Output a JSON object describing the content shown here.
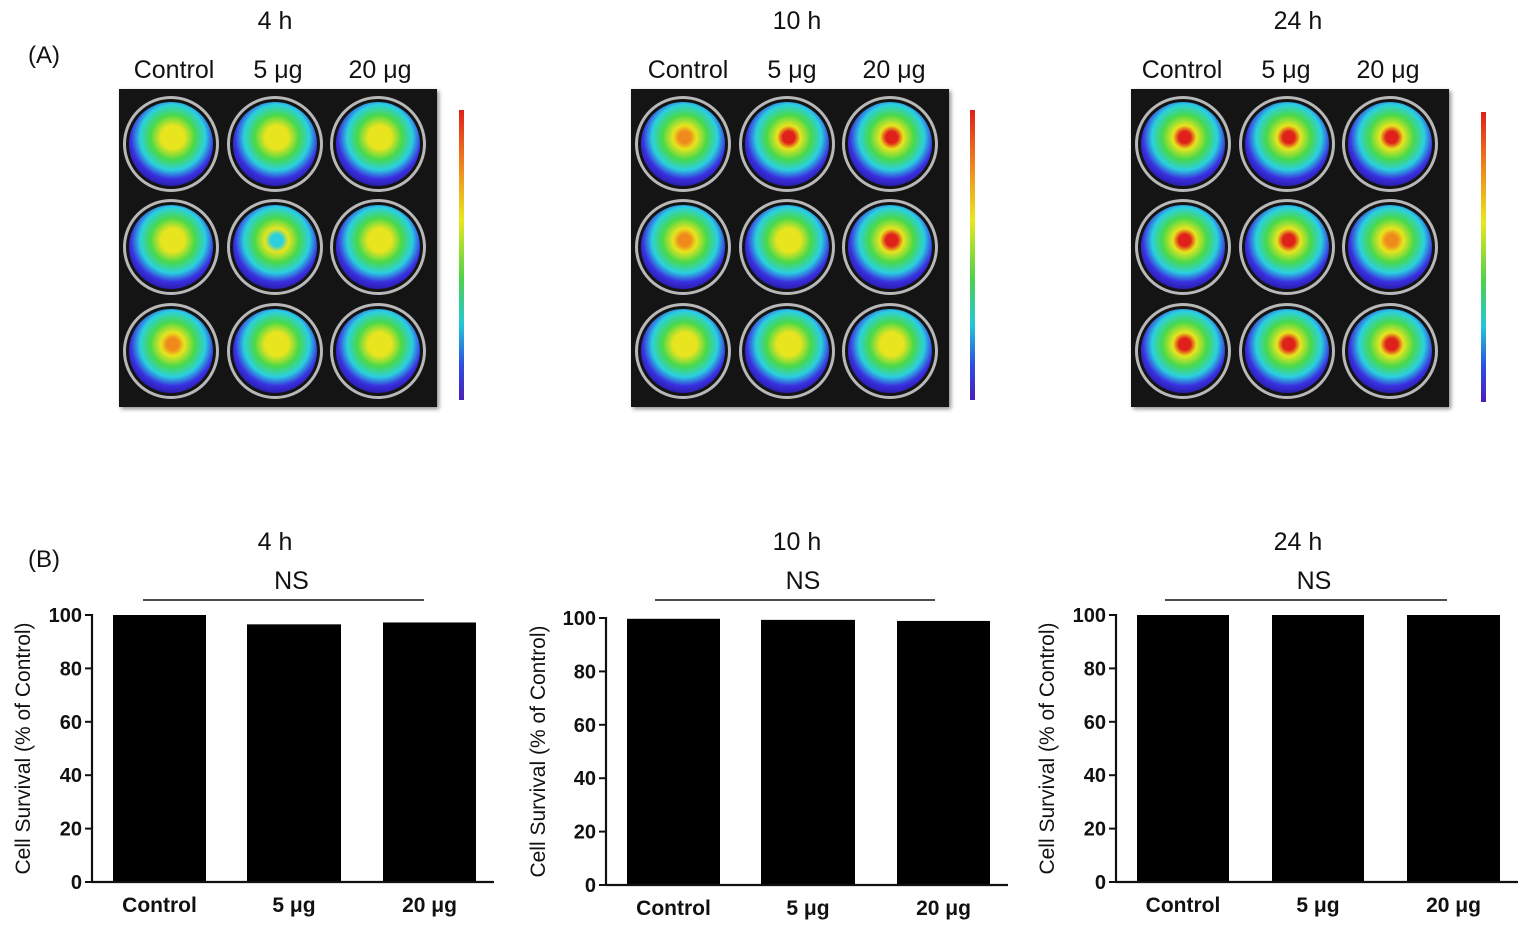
{
  "panels": {
    "a_tag": "(A)",
    "b_tag": "(B)"
  },
  "timepoints": [
    {
      "label": "4 h",
      "columns": [
        "Control",
        "5 μg",
        "20 μg"
      ]
    },
    {
      "label": "10 h",
      "columns": [
        "Control",
        "5 μg",
        "20 μg"
      ]
    },
    {
      "label": "24 h",
      "columns": [
        "Control",
        "5 μg",
        "20 μg"
      ]
    }
  ],
  "well_colors": {
    "blue": "#3a2fe0",
    "cyan": "#2ad0e0",
    "green": "#49d94a",
    "yellow": "#e8e41e",
    "orange": "#f08a1c",
    "red": "#e0201a",
    "grey": "#b8b8b8",
    "plate": "#141414"
  },
  "chart_data": [
    {
      "type": "bar",
      "title": "4 h",
      "annotation": "NS",
      "categories": [
        "Control",
        "5 μg",
        "20 μg"
      ],
      "values": [
        100,
        96.5,
        97.2
      ],
      "xlabel": "",
      "ylabel": "Cell Survival (% of Control)",
      "ylim": [
        0,
        100
      ],
      "yticks": [
        "0",
        "20",
        "40",
        "60",
        "80",
        "100"
      ],
      "grid": false,
      "bar_color": "#000000"
    },
    {
      "type": "bar",
      "title": "10 h",
      "annotation": "NS",
      "categories": [
        "Control",
        "5 μg",
        "20 μg"
      ],
      "values": [
        99.7,
        99.3,
        98.9
      ],
      "xlabel": "",
      "ylabel": "Cell Survival (% of Control)",
      "ylim": [
        0,
        100
      ],
      "yticks": [
        "0",
        "20",
        "40",
        "60",
        "80",
        "100"
      ],
      "grid": false,
      "bar_color": "#000000"
    },
    {
      "type": "bar",
      "title": "24 h",
      "annotation": "NS",
      "categories": [
        "Control",
        "5 μg",
        "20 μg"
      ],
      "values": [
        100,
        100,
        100
      ],
      "xlabel": "",
      "ylabel": "Cell Survival (% of Control)",
      "ylim": [
        0,
        100
      ],
      "yticks": [
        "0",
        "20",
        "40",
        "60",
        "80",
        "100"
      ],
      "grid": false,
      "bar_color": "#000000"
    }
  ]
}
